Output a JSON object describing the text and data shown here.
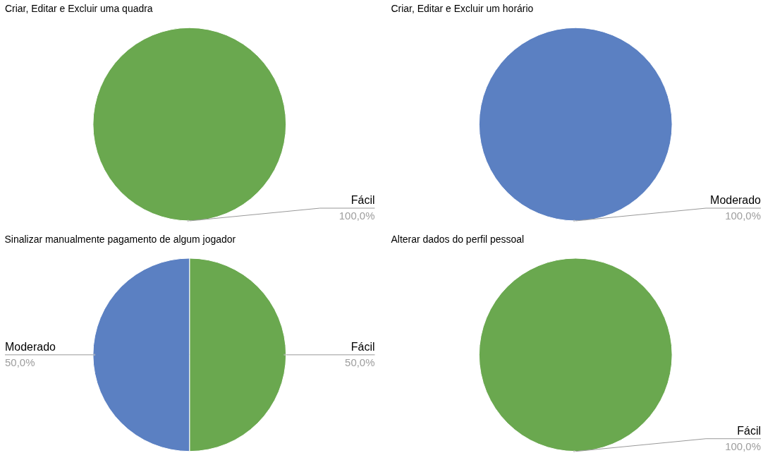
{
  "chart_data": [
    {
      "type": "pie",
      "title": "Criar, Editar e Excluir uma quadra",
      "categories": [
        "Fácil"
      ],
      "values": [
        100
      ],
      "value_labels": [
        "100,0%"
      ],
      "colors": [
        "#6aa84f"
      ]
    },
    {
      "type": "pie",
      "title": "Criar, Editar e Excluir um horário",
      "categories": [
        "Moderado"
      ],
      "values": [
        100
      ],
      "value_labels": [
        "100,0%"
      ],
      "colors": [
        "#5b80c2"
      ]
    },
    {
      "type": "pie",
      "title": "Sinalizar manualmente pagamento de algum jogador",
      "categories": [
        "Fácil",
        "Moderado"
      ],
      "values": [
        50,
        50
      ],
      "value_labels": [
        "50,0%",
        "50,0%"
      ],
      "colors": [
        "#6aa84f",
        "#5b80c2"
      ]
    },
    {
      "type": "pie",
      "title": "Alterar dados do perfil pessoal",
      "categories": [
        "Fácil"
      ],
      "values": [
        100
      ],
      "value_labels": [
        "100,0%"
      ],
      "colors": [
        "#6aa84f"
      ]
    }
  ]
}
